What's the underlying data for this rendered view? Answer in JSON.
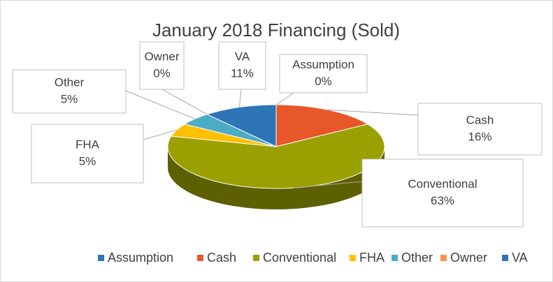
{
  "chart_data": {
    "type": "pie3d",
    "title": "January 2018 Financing (Sold)",
    "categories": [
      "Assumption",
      "Cash",
      "Conventional",
      "FHA",
      "Other",
      "Owner",
      "VA"
    ],
    "values": [
      0,
      16,
      63,
      5,
      5,
      0,
      11
    ],
    "value_labels": [
      "0%",
      "16%",
      "63%",
      "5%",
      "5%",
      "0%",
      "11%"
    ],
    "colors": [
      "#2e75b6",
      "#e8572a",
      "#9aa000",
      "#ffc000",
      "#4bacc6",
      "#f79646",
      "#2e75b6"
    ],
    "legend": "bottom"
  }
}
